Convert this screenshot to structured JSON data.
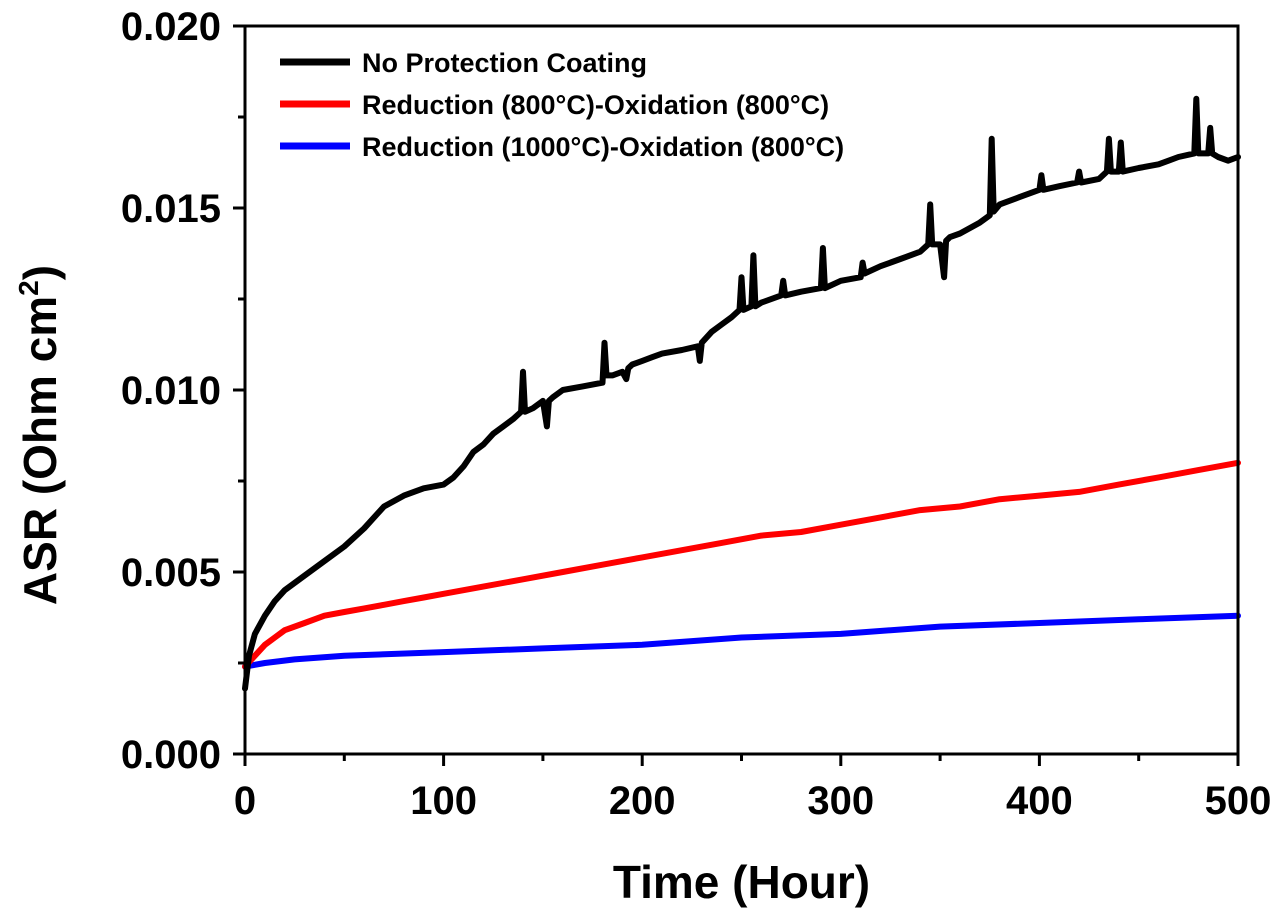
{
  "chart_data": {
    "type": "line",
    "xlabel": "Time (Hour)",
    "ylabel_main": "ASR (Ohm cm",
    "ylabel_sup": "2",
    "ylabel_close": ")",
    "xlim": [
      0,
      500
    ],
    "ylim": [
      0.0,
      0.02
    ],
    "xticks": [
      0,
      100,
      200,
      300,
      400,
      500
    ],
    "xtick_labels": [
      "0",
      "100",
      "200",
      "300",
      "400",
      "500"
    ],
    "yticks": [
      0.0,
      0.005,
      0.01,
      0.015,
      0.02
    ],
    "ytick_labels": [
      "0.000",
      "0.005",
      "0.010",
      "0.015",
      "0.020"
    ],
    "grid": false,
    "legend_position": "top-left",
    "series": [
      {
        "name": "No Protection Coating",
        "color": "#000000",
        "x": [
          0,
          2,
          5,
          10,
          15,
          20,
          30,
          40,
          50,
          60,
          65,
          70,
          80,
          90,
          100,
          105,
          110,
          115,
          120,
          125,
          130,
          135,
          139,
          140,
          141,
          145,
          150,
          152,
          153,
          155,
          160,
          170,
          180,
          181,
          182,
          185,
          190,
          192,
          193,
          195,
          200,
          205,
          210,
          220,
          228,
          229,
          230,
          235,
          240,
          245,
          249,
          250,
          251,
          255,
          256,
          257,
          260,
          270,
          271,
          272,
          280,
          290,
          291,
          292,
          300,
          310,
          311,
          312,
          320,
          330,
          340,
          344,
          345,
          346,
          350,
          352,
          353,
          355,
          360,
          370,
          375,
          376,
          377,
          380,
          390,
          400,
          401,
          402,
          410,
          419,
          420,
          421,
          430,
          434,
          435,
          436,
          440,
          441,
          442,
          450,
          460,
          465,
          470,
          478,
          479,
          480,
          481,
          485,
          486,
          487,
          490,
          495,
          500
        ],
        "y": [
          0.0018,
          0.0027,
          0.0033,
          0.0038,
          0.0042,
          0.0045,
          0.0049,
          0.0053,
          0.0057,
          0.0062,
          0.0065,
          0.0068,
          0.0071,
          0.0073,
          0.0074,
          0.0076,
          0.0079,
          0.0083,
          0.0085,
          0.0088,
          0.009,
          0.0092,
          0.0094,
          0.0105,
          0.0094,
          0.0095,
          0.0097,
          0.009,
          0.0097,
          0.0098,
          0.01,
          0.0101,
          0.0102,
          0.0113,
          0.0104,
          0.0104,
          0.0105,
          0.0103,
          0.0106,
          0.0107,
          0.0108,
          0.0109,
          0.011,
          0.0111,
          0.0112,
          0.0108,
          0.0113,
          0.0116,
          0.0118,
          0.012,
          0.0122,
          0.0131,
          0.0122,
          0.0123,
          0.0137,
          0.0123,
          0.0124,
          0.0126,
          0.013,
          0.0126,
          0.0127,
          0.0128,
          0.0139,
          0.0128,
          0.013,
          0.0131,
          0.0135,
          0.0132,
          0.0134,
          0.0136,
          0.0138,
          0.014,
          0.0151,
          0.014,
          0.014,
          0.0131,
          0.0141,
          0.0142,
          0.0143,
          0.0146,
          0.0148,
          0.0169,
          0.0149,
          0.0151,
          0.0153,
          0.0155,
          0.0159,
          0.0155,
          0.0156,
          0.0157,
          0.016,
          0.0157,
          0.0158,
          0.016,
          0.0169,
          0.016,
          0.016,
          0.0168,
          0.016,
          0.0161,
          0.0162,
          0.0163,
          0.0164,
          0.0165,
          0.018,
          0.0165,
          0.0165,
          0.0165,
          0.0172,
          0.0165,
          0.0164,
          0.0163,
          0.0164
        ]
      },
      {
        "name": "Reduction (800°C)-Oxidation (800°C)",
        "color": "#ff0000",
        "x": [
          0,
          5,
          10,
          15,
          20,
          30,
          40,
          50,
          60,
          70,
          80,
          90,
          100,
          120,
          140,
          160,
          180,
          200,
          220,
          240,
          260,
          280,
          300,
          320,
          340,
          360,
          380,
          400,
          420,
          440,
          460,
          480,
          500
        ],
        "y": [
          0.0024,
          0.0027,
          0.003,
          0.0032,
          0.0034,
          0.0036,
          0.0038,
          0.0039,
          0.004,
          0.0041,
          0.0042,
          0.0043,
          0.0044,
          0.0046,
          0.0048,
          0.005,
          0.0052,
          0.0054,
          0.0056,
          0.0058,
          0.006,
          0.0061,
          0.0063,
          0.0065,
          0.0067,
          0.0068,
          0.007,
          0.0071,
          0.0072,
          0.0074,
          0.0076,
          0.0078,
          0.008
        ]
      },
      {
        "name": "Reduction (1000°C)-Oxidation (800°C)",
        "color": "#0000ff",
        "x": [
          0,
          10,
          25,
          50,
          100,
          150,
          200,
          250,
          300,
          350,
          400,
          450,
          500
        ],
        "y": [
          0.0024,
          0.0025,
          0.0026,
          0.0027,
          0.0028,
          0.0029,
          0.003,
          0.0032,
          0.0033,
          0.0035,
          0.0036,
          0.0037,
          0.0038
        ]
      }
    ]
  }
}
